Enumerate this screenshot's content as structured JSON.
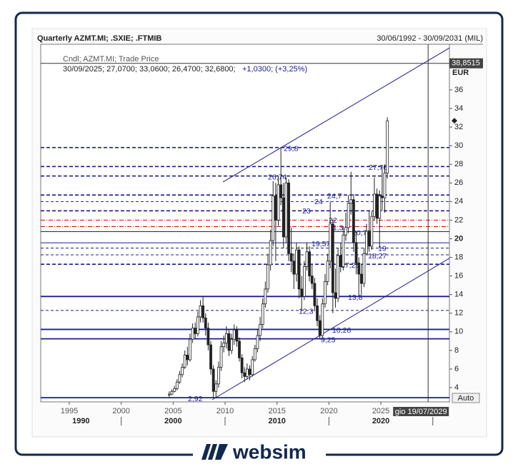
{
  "header": {
    "title": "Quarterly AZMT.MI; .SXIE; .FTMIB",
    "range": "30/06/1992 - 30/09/2031 (MIL)"
  },
  "chart_data": {
    "type": "candlestick",
    "legend": "Cndl; AZMT.MI; Trade Price",
    "quote": "30/09/2025; 27,0700; 33,0600; 26,4700; 32,6800;",
    "change": "+1,0300; (+3,25%)",
    "currency": "EUR",
    "auto_button": "Auto",
    "xlim": [
      1992.25,
      2031.6
    ],
    "xticks": [
      1995,
      2000,
      2005,
      2010,
      2015,
      2020,
      2025
    ],
    "decades": [
      1990,
      2000,
      2010,
      2020
    ],
    "ylim": [
      2.47,
      40.9
    ],
    "yticks": [
      4,
      6,
      8,
      10,
      12,
      14,
      16,
      18,
      20,
      22,
      24,
      26,
      28,
      30,
      32,
      34,
      36
    ],
    "color": "#222222",
    "x": [
      2004.625,
      2004.875,
      2005.125,
      2005.375,
      2005.625,
      2005.875,
      2006.125,
      2006.375,
      2006.625,
      2006.875,
      2007.125,
      2007.375,
      2007.625,
      2007.875,
      2008.125,
      2008.375,
      2008.625,
      2008.875,
      2009.125,
      2009.375,
      2009.625,
      2009.875,
      2010.125,
      2010.375,
      2010.625,
      2010.875,
      2011.125,
      2011.375,
      2011.625,
      2011.875,
      2012.125,
      2012.375,
      2012.625,
      2012.875,
      2013.125,
      2013.375,
      2013.625,
      2013.875,
      2014.125,
      2014.375,
      2014.625,
      2014.875,
      2015.125,
      2015.375,
      2015.625,
      2015.875,
      2016.125,
      2016.375,
      2016.625,
      2016.875,
      2017.125,
      2017.375,
      2017.625,
      2017.875,
      2018.125,
      2018.375,
      2018.625,
      2018.875,
      2019.125,
      2019.375,
      2019.625,
      2019.875,
      2020.125,
      2020.375,
      2020.625,
      2020.875,
      2021.125,
      2021.375,
      2021.625,
      2021.875,
      2022.125,
      2022.375,
      2022.625,
      2022.875,
      2023.125,
      2023.375,
      2023.625,
      2023.875,
      2024.125,
      2024.375,
      2024.625,
      2024.875,
      2025.125,
      2025.375,
      2025.625
    ],
    "series": [
      {
        "open": [
          3.2,
          3.3,
          3.6,
          3.9,
          4.6,
          5.4,
          6.2,
          7.5,
          7.0,
          9.2,
          10.4,
          9.8,
          11.6,
          12.8,
          11.5,
          10.4,
          8.6,
          6.0,
          3.6,
          4.4,
          6.2,
          8.4,
          8.8,
          9.8,
          8.0,
          9.2,
          10.2,
          9.0,
          7.2,
          5.6,
          5.2,
          6.0,
          5.4,
          7.0,
          8.2,
          9.6,
          10.8,
          13.0,
          14.6,
          17.2,
          19.8,
          24.6,
          22.0,
          25.8,
          24.4,
          20.2,
          26.0,
          18.4,
          17.6,
          16.2,
          18.8,
          14.6,
          13.8,
          17.0,
          18.6,
          16.0,
          15.2,
          12.8,
          11.2,
          9.6,
          13.0,
          15.4,
          17.6,
          21.6,
          14.2,
          13.6,
          18.2,
          17.0,
          20.4,
          21.2,
          23.8,
          24.2,
          19.6,
          17.4,
          16.2,
          15.2,
          18.4,
          20.8,
          19.2,
          22.4,
          24.8,
          22.2,
          24.6,
          24.4,
          27.07
        ],
        "high": [
          3.6,
          3.8,
          4.2,
          4.9,
          5.8,
          6.6,
          8.0,
          8.4,
          9.8,
          10.9,
          11.0,
          12.2,
          13.4,
          13.8,
          12.0,
          11.0,
          9.0,
          6.4,
          4.8,
          6.8,
          9.0,
          9.6,
          10.6,
          10.2,
          9.8,
          10.8,
          10.6,
          9.4,
          7.6,
          6.2,
          6.6,
          6.4,
          7.4,
          8.6,
          10.2,
          11.6,
          13.6,
          15.4,
          18.4,
          21.0,
          26.2,
          26.0,
          26.74,
          29.8,
          26.0,
          26.6,
          26.4,
          21.2,
          18.4,
          19.6,
          19.2,
          16.0,
          17.6,
          19.6,
          19.2,
          17.2,
          15.8,
          13.6,
          11.8,
          13.6,
          16.2,
          18.4,
          24.0,
          22.0,
          16.8,
          19.0,
          19.57,
          21.3,
          22.8,
          24.7,
          27.2,
          24.8,
          20.76,
          18.0,
          17.26,
          19.0,
          21.6,
          23.0,
          23.0,
          26.6,
          25.4,
          25.2,
          27.76,
          28.0,
          33.06
        ],
        "low": [
          3.0,
          3.2,
          3.5,
          3.7,
          4.4,
          5.1,
          6.0,
          6.4,
          6.8,
          8.8,
          9.2,
          9.5,
          11.0,
          11.0,
          9.6,
          8.0,
          5.4,
          2.92,
          3.0,
          4.0,
          5.8,
          7.8,
          8.2,
          7.4,
          7.6,
          8.6,
          8.4,
          6.8,
          5.0,
          4.6,
          4.9,
          4.8,
          5.2,
          6.8,
          7.8,
          9.0,
          10.4,
          12.6,
          14.2,
          16.6,
          19.2,
          17.6,
          21.4,
          23.6,
          19.0,
          19.6,
          17.6,
          16.4,
          14.6,
          15.4,
          13.6,
          12.3,
          13.4,
          16.6,
          15.4,
          14.6,
          12.2,
          10.6,
          9.25,
          9.4,
          12.6,
          15.0,
          16.8,
          12.0,
          12.6,
          13.2,
          16.4,
          16.6,
          19.8,
          20.6,
          22.6,
          18.6,
          16.2,
          13.8,
          14.0,
          14.8,
          18.27,
          18.6,
          18.8,
          22.0,
          21.6,
          19.0,
          23.0,
          22.8,
          26.47
        ],
        "close": [
          3.3,
          3.6,
          3.9,
          4.6,
          5.4,
          6.2,
          7.5,
          7.0,
          9.2,
          10.4,
          9.8,
          11.6,
          12.8,
          11.5,
          10.4,
          8.6,
          6.0,
          3.6,
          4.4,
          6.2,
          8.4,
          8.8,
          9.8,
          8.0,
          9.2,
          10.2,
          9.0,
          7.2,
          5.6,
          5.2,
          6.0,
          5.4,
          7.0,
          8.2,
          9.6,
          10.8,
          13.0,
          14.6,
          17.2,
          19.8,
          24.6,
          22.0,
          25.8,
          24.4,
          20.2,
          26.0,
          18.4,
          17.6,
          16.2,
          18.8,
          14.6,
          13.8,
          17.0,
          18.6,
          16.0,
          15.2,
          12.8,
          11.2,
          9.6,
          13.0,
          15.4,
          17.6,
          21.6,
          14.2,
          13.6,
          18.2,
          17.0,
          20.4,
          21.2,
          23.8,
          24.2,
          19.6,
          17.4,
          16.2,
          15.2,
          18.4,
          20.8,
          19.2,
          22.4,
          24.8,
          22.2,
          24.6,
          24.4,
          27.07,
          32.68
        ]
      }
    ],
    "levels": [
      {
        "value": 29.8,
        "label": "29,8",
        "style": "thick-dashed",
        "color": "#1c1c8f"
      },
      {
        "value": 27.76,
        "label": "27,76",
        "style": "thick-dashed",
        "color": "#1c1c8f"
      },
      {
        "value": 26.74,
        "label": "26,74",
        "style": "thick-dashed",
        "color": "#1c1c8f"
      },
      {
        "value": 24.7,
        "label": "24,7",
        "style": "thick-dashed",
        "color": "#1c1c8f"
      },
      {
        "value": 24,
        "style": "thin-dashed",
        "color": "#1c1c8f"
      },
      {
        "value": 23,
        "style": "thick-dashed",
        "color": "#1c1c8f"
      },
      {
        "value": 22,
        "style": "dash-dot",
        "color": "#cc0000"
      },
      {
        "value": 21.3,
        "label": "21,3",
        "style": "dash-dot",
        "color": "#cc0000"
      },
      {
        "value": 20.76,
        "label": "20,76",
        "style": "thin-solid",
        "color": "#1c1c8f"
      },
      {
        "value": 19.57,
        "label": "19,57",
        "style": "thin-solid",
        "color": "#1c1c8f"
      },
      {
        "value": 19,
        "style": "thin-dashed",
        "color": "#1c1c8f"
      },
      {
        "value": 18.27,
        "label": "18,27",
        "style": "thin-dashed",
        "color": "#1c1c8f"
      },
      {
        "value": 17.26,
        "label": "17,26",
        "style": "thick-dashed",
        "color": "#1c1c8f"
      },
      {
        "value": 13.8,
        "label": "13,8",
        "style": "thick-solid",
        "color": "#1c1c8f"
      },
      {
        "value": 12.3,
        "label": "12,3",
        "style": "thin-dashed",
        "color": "#1c1c8f"
      },
      {
        "value": 10.26,
        "label": "10,26",
        "style": "thick-solid",
        "color": "#1c1c8f"
      },
      {
        "value": 9.25,
        "label": "9,25",
        "style": "thick-solid",
        "color": "#1c1c8f"
      },
      {
        "value": 2.92,
        "label": "2,92",
        "style": "thick-solid",
        "color": "#1c1c8f"
      }
    ],
    "trendlines": [
      {
        "x": [
          2009.8,
          2031.6
        ],
        "y": [
          26.1,
          40.5
        ],
        "color": "#1c1c8f"
      },
      {
        "x": [
          2008.76,
          2031.6
        ],
        "y": [
          2.7,
          17.9
        ],
        "color": "#1c1c8f"
      }
    ],
    "cursor": {
      "x": 2029.55,
      "y": 38.8515,
      "x_label": "gio 19/07/2029",
      "y_label": "38,8515"
    }
  },
  "footer": {
    "brand": "websim"
  }
}
